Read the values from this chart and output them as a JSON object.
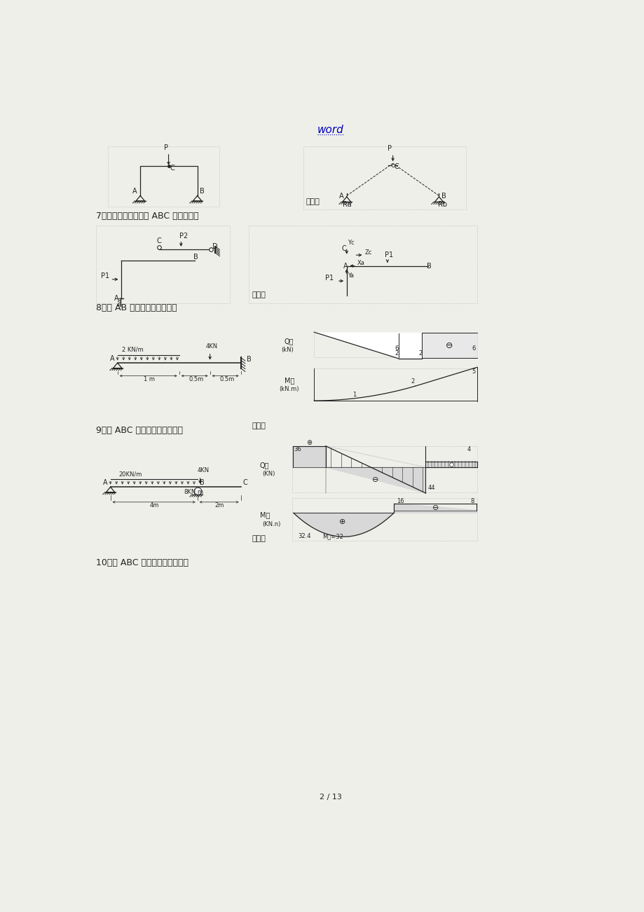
{
  "title": "word",
  "page_num": "2 / 13",
  "bg_color": "#f0f0e8",
  "text_color": "#1a1a1a",
  "s7": "7、画出图示指定物体 ABC 的受力图。",
  "s8": "8、作 AB 梁的剪力和弯矩图。",
  "s9": "9、作 ABC 梁的剪力和弯矩图。",
  "s10": "10、作 ABC 梁的剪力和弯矩图。",
  "ans": "答案："
}
